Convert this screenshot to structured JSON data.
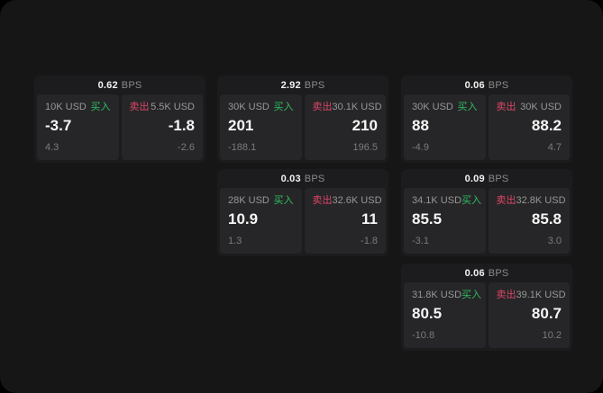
{
  "colors": {
    "buy_green": "#2fbd63",
    "sell_red": "#dd4667",
    "card_bg": "#1c1c1e",
    "panel_bg": "#262628",
    "page_bg": "#161616"
  },
  "cards": [
    {
      "bps_value": "0.62",
      "bps_unit": "BPS",
      "buy": {
        "amount": "10K USD",
        "side_label": "买入",
        "value": "-3.7",
        "sub_value": "4.3"
      },
      "sell": {
        "amount": "5.5K USD",
        "side_label": "卖出",
        "value": "-1.8",
        "sub_value": "-2.6"
      }
    },
    {
      "bps_value": "2.92",
      "bps_unit": "BPS",
      "buy": {
        "amount": "30K USD",
        "side_label": "买入",
        "value": "201",
        "sub_value": "-188.1"
      },
      "sell": {
        "amount": "30.1K USD",
        "side_label": "卖出",
        "value": "210",
        "sub_value": "196.5"
      }
    },
    {
      "bps_value": "0.06",
      "bps_unit": "BPS",
      "buy": {
        "amount": "30K USD",
        "side_label": "买入",
        "value": "88",
        "sub_value": "-4.9"
      },
      "sell": {
        "amount": "30K USD",
        "side_label": "卖出",
        "value": "88.2",
        "sub_value": "4.7"
      }
    },
    {
      "bps_value": "0.03",
      "bps_unit": "BPS",
      "buy": {
        "amount": "28K USD",
        "side_label": "买入",
        "value": "10.9",
        "sub_value": "1.3"
      },
      "sell": {
        "amount": "32.6K USD",
        "side_label": "卖出",
        "value": "11",
        "sub_value": "-1.8"
      }
    },
    {
      "bps_value": "0.09",
      "bps_unit": "BPS",
      "buy": {
        "amount": "34.1K USD",
        "side_label": "买入",
        "value": "85.5",
        "sub_value": "-3.1"
      },
      "sell": {
        "amount": "32.8K USD",
        "side_label": "卖出",
        "value": "85.8",
        "sub_value": "3.0"
      }
    },
    {
      "bps_value": "0.06",
      "bps_unit": "BPS",
      "buy": {
        "amount": "31.8K USD",
        "side_label": "买入",
        "value": "80.5",
        "sub_value": "-10.8"
      },
      "sell": {
        "amount": "39.1K USD",
        "side_label": "卖出",
        "value": "80.7",
        "sub_value": "10.2"
      }
    }
  ]
}
